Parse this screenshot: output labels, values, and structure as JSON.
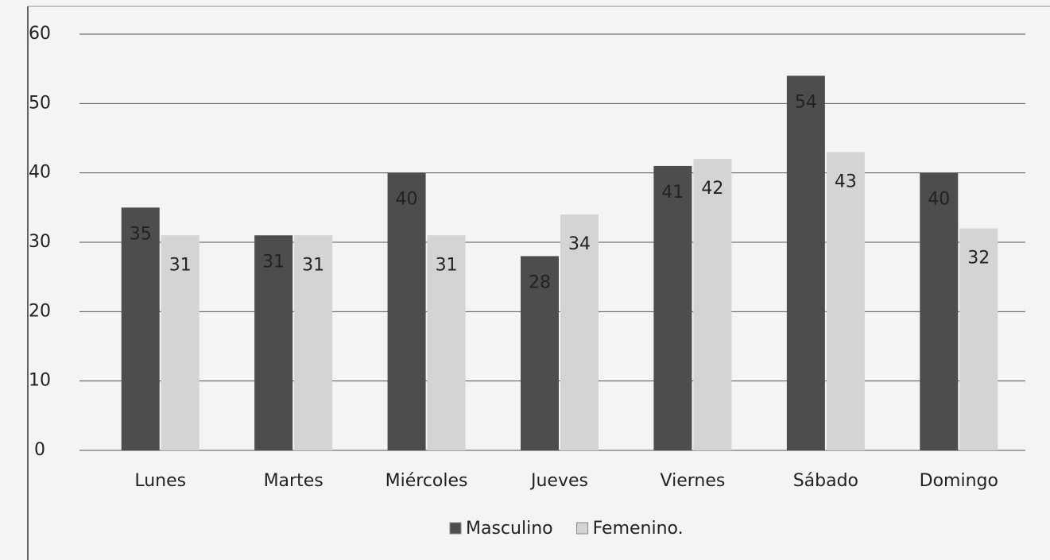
{
  "chart_data": {
    "type": "bar",
    "categories": [
      "Lunes",
      "Martes",
      "Miércoles",
      "Jueves",
      "Viernes",
      "Sábado",
      "Domingo"
    ],
    "series": [
      {
        "name": "Masculino",
        "color": "#4d4d4d",
        "values": [
          35,
          31,
          40,
          28,
          41,
          54,
          40
        ]
      },
      {
        "name": "Femenino.",
        "color": "#d4d4d4",
        "values": [
          31,
          31,
          31,
          34,
          42,
          43,
          32
        ]
      }
    ],
    "ylim": [
      0,
      60
    ],
    "yticks": [
      0,
      10,
      20,
      30,
      40,
      50,
      60
    ],
    "grid": true,
    "legend": "bottom"
  }
}
